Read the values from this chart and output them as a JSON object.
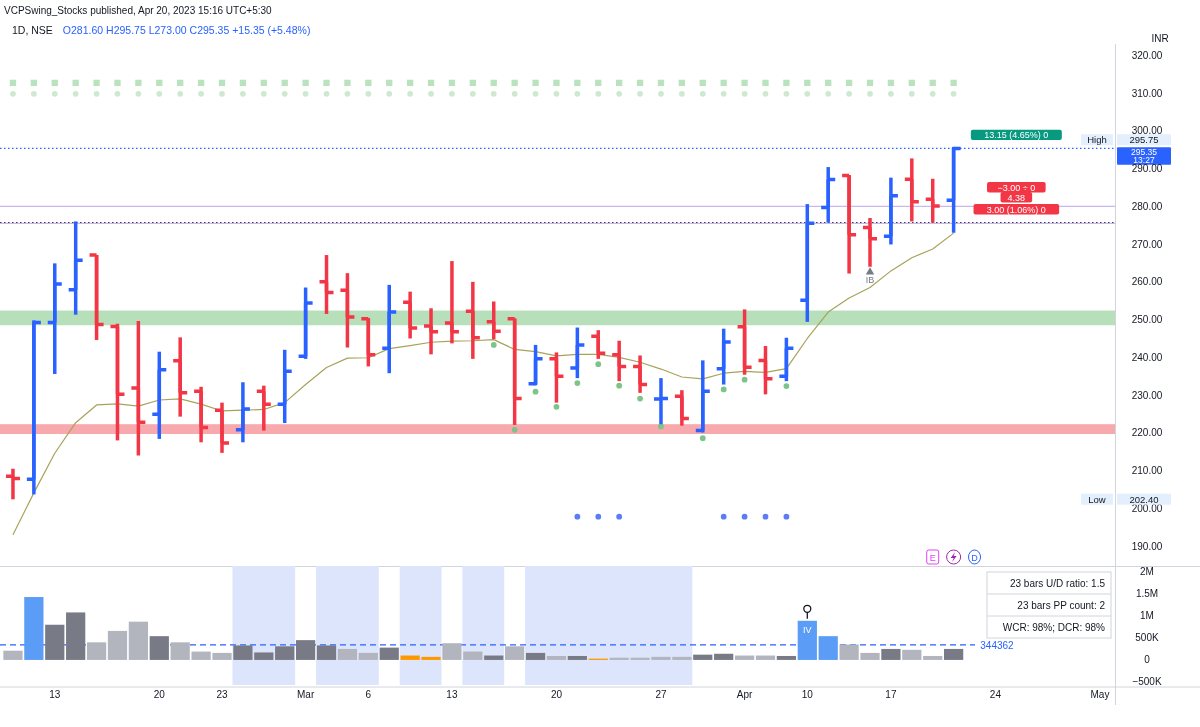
{
  "chart_data": [
    {
      "type": "candlestick",
      "title": "1D, NSE",
      "subtitle": "O281.60 H295.75 L273.00 C295.35 +15.35 (+5.48%)",
      "ylabel": "INR",
      "categories": [
        null,
        null,
        null,
        null,
        null,
        null,
        null,
        null,
        null,
        null,
        null,
        null,
        null,
        null,
        null,
        null,
        null,
        null,
        null,
        null,
        null,
        null,
        null,
        null,
        null,
        null,
        null,
        null,
        null,
        null,
        null,
        null,
        null,
        null,
        null,
        null,
        null,
        null,
        null,
        null,
        null,
        null,
        null,
        null,
        null,
        null
      ],
      "ylim": [
        185,
        323
      ],
      "yticks": [
        {
          "value": 190,
          "label": "190.00"
        },
        {
          "value": 200,
          "label": "200.00"
        },
        {
          "value": 210,
          "label": "210.00"
        },
        {
          "value": 220,
          "label": "220.00"
        },
        {
          "value": 230,
          "label": "230.00"
        },
        {
          "value": 240,
          "label": "240.00"
        },
        {
          "value": 250,
          "label": "250.00"
        },
        {
          "value": 260,
          "label": "260.00"
        },
        {
          "value": 270,
          "label": "270.00"
        },
        {
          "value": 280,
          "label": "280.00"
        },
        {
          "value": 290,
          "label": "290.00"
        },
        {
          "value": 300,
          "label": "300.00"
        },
        {
          "value": 310,
          "label": "310.00"
        },
        {
          "value": 320,
          "label": "320.00"
        }
      ],
      "tick_labels": "y",
      "colors": [
        "#f23645",
        "#2962ff",
        "#2962ff",
        "#2962ff",
        "#f23645",
        "#f23645",
        "#f23645",
        "#2962ff",
        "#f23645",
        "#f23645",
        "#f23645",
        "#2962ff",
        "#f23645",
        "#2962ff",
        "#2962ff",
        "#f23645",
        "#f23645",
        "#f23645",
        "#2962ff",
        "#f23645",
        "#f23645",
        "#f23645",
        "#f23645",
        "#f23645",
        "#f23645",
        "#2962ff",
        "#f23645",
        "#2962ff",
        "#f23645",
        "#f23645",
        "#f23645",
        "#2962ff",
        "#f23645",
        "#2962ff",
        "#2962ff",
        "#f23645",
        "#f23645",
        "#2962ff",
        "#2962ff",
        "#2962ff",
        "#f23645",
        "#f23645",
        "#2962ff",
        "#f23645",
        "#f23645",
        "#2962ff"
      ],
      "ohlc": [
        [
          208.5,
          210.5,
          202.4,
          207.9
        ],
        [
          207.7,
          249.8,
          203.7,
          249.2
        ],
        [
          249.2,
          264.9,
          235.6,
          259.4
        ],
        [
          257.9,
          276.0,
          251.3,
          265.7
        ],
        [
          267.1,
          267.1,
          244.6,
          248.7
        ],
        [
          248.2,
          248.9,
          218.0,
          230.2
        ],
        [
          231.9,
          249.6,
          214.0,
          222.8
        ],
        [
          224.9,
          241.5,
          218.4,
          236.7
        ],
        [
          239.1,
          245.3,
          224.3,
          230.6
        ],
        [
          231.0,
          232.2,
          217.5,
          221.4
        ],
        [
          226.0,
          228.0,
          214.7,
          217.3
        ],
        [
          220.8,
          233.4,
          217.5,
          226.3
        ],
        [
          231.0,
          232.5,
          220.6,
          227.6
        ],
        [
          227.6,
          242.0,
          222.6,
          236.3
        ],
        [
          240.3,
          258.5,
          239.6,
          254.4
        ],
        [
          260.0,
          267.1,
          251.5,
          257.2
        ],
        [
          257.8,
          262.3,
          242.6,
          250.7
        ],
        [
          250.2,
          250.4,
          237.6,
          240.7
        ],
        [
          242.4,
          259.2,
          235.8,
          252.0
        ],
        [
          254.6,
          257.4,
          245.0,
          247.8
        ],
        [
          248.3,
          253.0,
          240.8,
          246.8
        ],
        [
          249.1,
          265.5,
          243.7,
          246.8
        ],
        [
          252.2,
          260.0,
          239.6,
          245.2
        ],
        [
          249.4,
          254.8,
          244.8,
          246.9
        ],
        [
          250.2,
          250.3,
          222.1,
          229.1
        ],
        [
          233.0,
          243.3,
          232.6,
          239.6
        ],
        [
          239.6,
          241.3,
          228.0,
          235.0
        ],
        [
          237.2,
          247.9,
          234.5,
          243.3
        ],
        [
          245.6,
          247.2,
          239.6,
          241.1
        ],
        [
          240.7,
          244.4,
          233.7,
          237.6
        ],
        [
          237.6,
          240.5,
          230.6,
          232.8
        ],
        [
          229.0,
          234.5,
          222.3,
          229.1
        ],
        [
          229.7,
          231.3,
          221.9,
          223.8
        ],
        [
          220.6,
          239.2,
          220.1,
          231.0
        ],
        [
          237.0,
          247.6,
          232.8,
          244.1
        ],
        [
          248.1,
          252.7,
          235.4,
          237.4
        ],
        [
          239.2,
          243.0,
          230.2,
          234.3
        ],
        [
          235.0,
          245.2,
          233.7,
          242.4
        ],
        [
          255.1,
          280.6,
          249.4,
          275.5
        ],
        [
          279.7,
          290.4,
          275.7,
          287.1
        ],
        [
          288.2,
          288.3,
          262.2,
          272.5
        ],
        [
          274.4,
          276.9,
          264.0,
          271.4
        ],
        [
          272.1,
          287.6,
          269.9,
          282.8
        ],
        [
          287.2,
          292.7,
          276.0,
          281.2
        ],
        [
          281.9,
          287.3,
          275.7,
          280.1
        ],
        [
          281.6,
          295.75,
          273.0,
          295.35
        ]
      ],
      "series": [
        {
          "type": "line",
          "color": "#a8a25a",
          "values": [
            193.0,
            204.1,
            214.6,
            222.7,
            227.4,
            227.7,
            227.1,
            228.7,
            229.0,
            227.6,
            225.8,
            226.0,
            226.2,
            228.0,
            232.8,
            237.3,
            239.8,
            239.9,
            242.3,
            243.1,
            244.0,
            244.3,
            244.4,
            244.7,
            242.1,
            241.5,
            240.4,
            240.8,
            240.8,
            240.0,
            238.7,
            236.9,
            234.8,
            234.3,
            235.8,
            236.3,
            236.0,
            237.0,
            245.0,
            252.0,
            255.7,
            258.5,
            262.9,
            266.4,
            268.7,
            272.9
          ]
        },
        {
          "type": "scatter",
          "marker": "square",
          "color": "#b9e3bd",
          "values": [
            312.7,
            312.7,
            312.7,
            312.7,
            312.7,
            312.7,
            312.7,
            312.7,
            312.7,
            312.7,
            312.7,
            312.7,
            312.7,
            312.7,
            312.7,
            312.7,
            312.7,
            312.7,
            312.7,
            312.7,
            312.7,
            312.7,
            312.7,
            312.7,
            312.7,
            312.7,
            312.7,
            312.7,
            312.7,
            312.7,
            312.7,
            312.7,
            312.7,
            312.7,
            312.7,
            312.7,
            312.7,
            312.7,
            312.7,
            312.7,
            312.7,
            312.7,
            312.7,
            312.7,
            312.7,
            312.7
          ]
        },
        {
          "type": "scatter",
          "marker": "circle",
          "color": "#cde9cf",
          "values": [
            309.8,
            309.8,
            309.8,
            309.8,
            309.8,
            309.8,
            309.8,
            309.8,
            309.8,
            309.8,
            309.8,
            309.8,
            309.8,
            309.8,
            309.8,
            309.8,
            309.8,
            309.8,
            309.8,
            309.8,
            309.8,
            309.8,
            309.8,
            309.8,
            309.8,
            309.8,
            309.8,
            309.8,
            309.8,
            309.8,
            309.8,
            309.8,
            309.8,
            309.8,
            309.8,
            309.8,
            309.8,
            309.8,
            309.8,
            309.8,
            309.8,
            309.8,
            309.8,
            309.8,
            309.8,
            309.8
          ]
        },
        {
          "type": "scatter",
          "marker": "circle",
          "color": "#7cc48a",
          "values": [
            null,
            null,
            null,
            null,
            null,
            null,
            null,
            null,
            null,
            null,
            null,
            null,
            null,
            null,
            null,
            null,
            null,
            null,
            null,
            null,
            null,
            null,
            null,
            243.3,
            220.8,
            230.9,
            226.9,
            233.2,
            238.2,
            232.5,
            229.1,
            221.7,
            null,
            218.6,
            231.5,
            234.1,
            null,
            232.4,
            null,
            null,
            null,
            null,
            null,
            null,
            null,
            null
          ]
        },
        {
          "type": "scatter",
          "marker": "circle",
          "color": "#5b7cf6",
          "values": [
            null,
            null,
            null,
            null,
            null,
            null,
            null,
            null,
            null,
            null,
            null,
            null,
            null,
            null,
            null,
            null,
            null,
            null,
            null,
            null,
            null,
            null,
            null,
            null,
            null,
            null,
            null,
            197.8,
            197.8,
            197.8,
            null,
            null,
            null,
            null,
            197.8,
            197.8,
            197.8,
            197.8,
            null,
            null,
            null,
            null,
            null,
            null,
            null,
            null
          ]
        },
        {
          "type": "scatter",
          "marker": "triangle",
          "name": "IB",
          "color": "#787b86",
          "values": [
            null,
            null,
            null,
            null,
            null,
            null,
            null,
            null,
            null,
            null,
            null,
            null,
            null,
            null,
            null,
            null,
            null,
            null,
            null,
            null,
            null,
            null,
            null,
            null,
            null,
            null,
            null,
            null,
            null,
            null,
            null,
            null,
            null,
            null,
            null,
            null,
            null,
            null,
            null,
            null,
            null,
            262.6,
            null,
            null,
            null,
            null
          ]
        }
      ],
      "bands": [
        {
          "axis": "y",
          "from": 248.5,
          "to": 252.4,
          "color": "#b7dfba"
        },
        {
          "axis": "y",
          "from": 219.7,
          "to": 222.3,
          "color": "#f7a9ae"
        }
      ],
      "ref_lines": [
        {
          "axis": "y",
          "value": 295.35,
          "label": "295.35\n13:27",
          "color": "#2962ff",
          "line_style": "dotted"
        },
        {
          "axis": "y",
          "value": 275.7,
          "color": "#131722",
          "line_style": "dotted"
        },
        {
          "axis": "y",
          "value": 280.0,
          "color": "#c9b8ec",
          "line_style": "solid"
        },
        {
          "axis": "y",
          "value": 275.5,
          "color": "#c9b8ec",
          "line_style": "solid"
        }
      ],
      "annotations": [
        "VCPSwing_Stocks published, Apr 20, 2023 15:16 UTC+5:30",
        "E",
        "D",
        "13.15 (4.65%) 0",
        "−3.00 ÷ 0",
        "4.38",
        "3.00 (1.06%) 0",
        "High",
        "295.75",
        "Low",
        "202.40"
      ]
    },
    {
      "type": "bar",
      "categories": [
        null,
        null,
        "13",
        null,
        null,
        null,
        null,
        "20",
        null,
        null,
        "23",
        null,
        null,
        null,
        "Mar",
        null,
        null,
        "6",
        null,
        null,
        null,
        "13",
        null,
        null,
        null,
        null,
        "20",
        null,
        null,
        null,
        null,
        "27",
        null,
        null,
        null,
        "Apr",
        null,
        null,
        "10",
        null,
        null,
        null,
        "17",
        null,
        null,
        null,
        null,
        "24",
        null,
        null,
        null,
        null,
        "May"
      ],
      "ylim": [
        -570000,
        2090000
      ],
      "yticks": [
        {
          "value": -500000,
          "label": "−500K"
        },
        {
          "value": 0,
          "label": "0"
        },
        {
          "value": 500000,
          "label": "500K"
        },
        {
          "value": 1000000,
          "label": "1M"
        },
        {
          "value": 1500000,
          "label": "1.5M"
        },
        {
          "value": 2000000,
          "label": "2M"
        }
      ],
      "values": [
        210000,
        1430000,
        800000,
        1080000,
        400000,
        660000,
        870000,
        540000,
        400000,
        190000,
        160000,
        330000,
        170000,
        310000,
        450000,
        330000,
        250000,
        160000,
        280000,
        100000,
        70000,
        380000,
        190000,
        100000,
        310000,
        160000,
        90000,
        90000,
        30000,
        50000,
        50000,
        70000,
        70000,
        120000,
        140000,
        100000,
        100000,
        90000,
        890000,
        540000,
        350000,
        160000,
        250000,
        230000,
        90000,
        250000,
        null,
        null,
        null,
        null,
        null,
        null,
        null
      ],
      "colors": [
        "#b2b5be",
        "#5b9cf6",
        "#787b86",
        "#787b86",
        "#b2b5be",
        "#b2b5be",
        "#b2b5be",
        "#787b86",
        "#b2b5be",
        "#b2b5be",
        "#b2b5be",
        "#787b86",
        "#787b86",
        "#787b86",
        "#787b86",
        "#787b86",
        "#b2b5be",
        "#b2b5be",
        "#787b86",
        "#ff9800",
        "#ff9800",
        "#b2b5be",
        "#b2b5be",
        "#787b86",
        "#b2b5be",
        "#787b86",
        "#b2b5be",
        "#787b86",
        "#ff9800",
        "#b2b5be",
        "#b2b5be",
        "#b2b5be",
        "#b2b5be",
        "#787b86",
        "#787b86",
        "#b2b5be",
        "#b2b5be",
        "#787b86",
        "#5b9cf6",
        "#5b9cf6",
        "#b2b5be",
        "#b2b5be",
        "#787b86",
        "#b2b5be",
        "#b2b5be",
        "#787b86",
        null,
        null,
        null,
        null,
        null,
        null,
        null
      ],
      "ref_lines": [
        {
          "axis": "y",
          "value": 344362,
          "label": "344362",
          "color": "#2962ff",
          "line_style": "dashed"
        }
      ],
      "annotations": [
        "23 bars U/D ratio: 1.5",
        "23 bars PP count: 2",
        "WCR: 98%; DCR: 98%",
        "IV"
      ]
    }
  ]
}
